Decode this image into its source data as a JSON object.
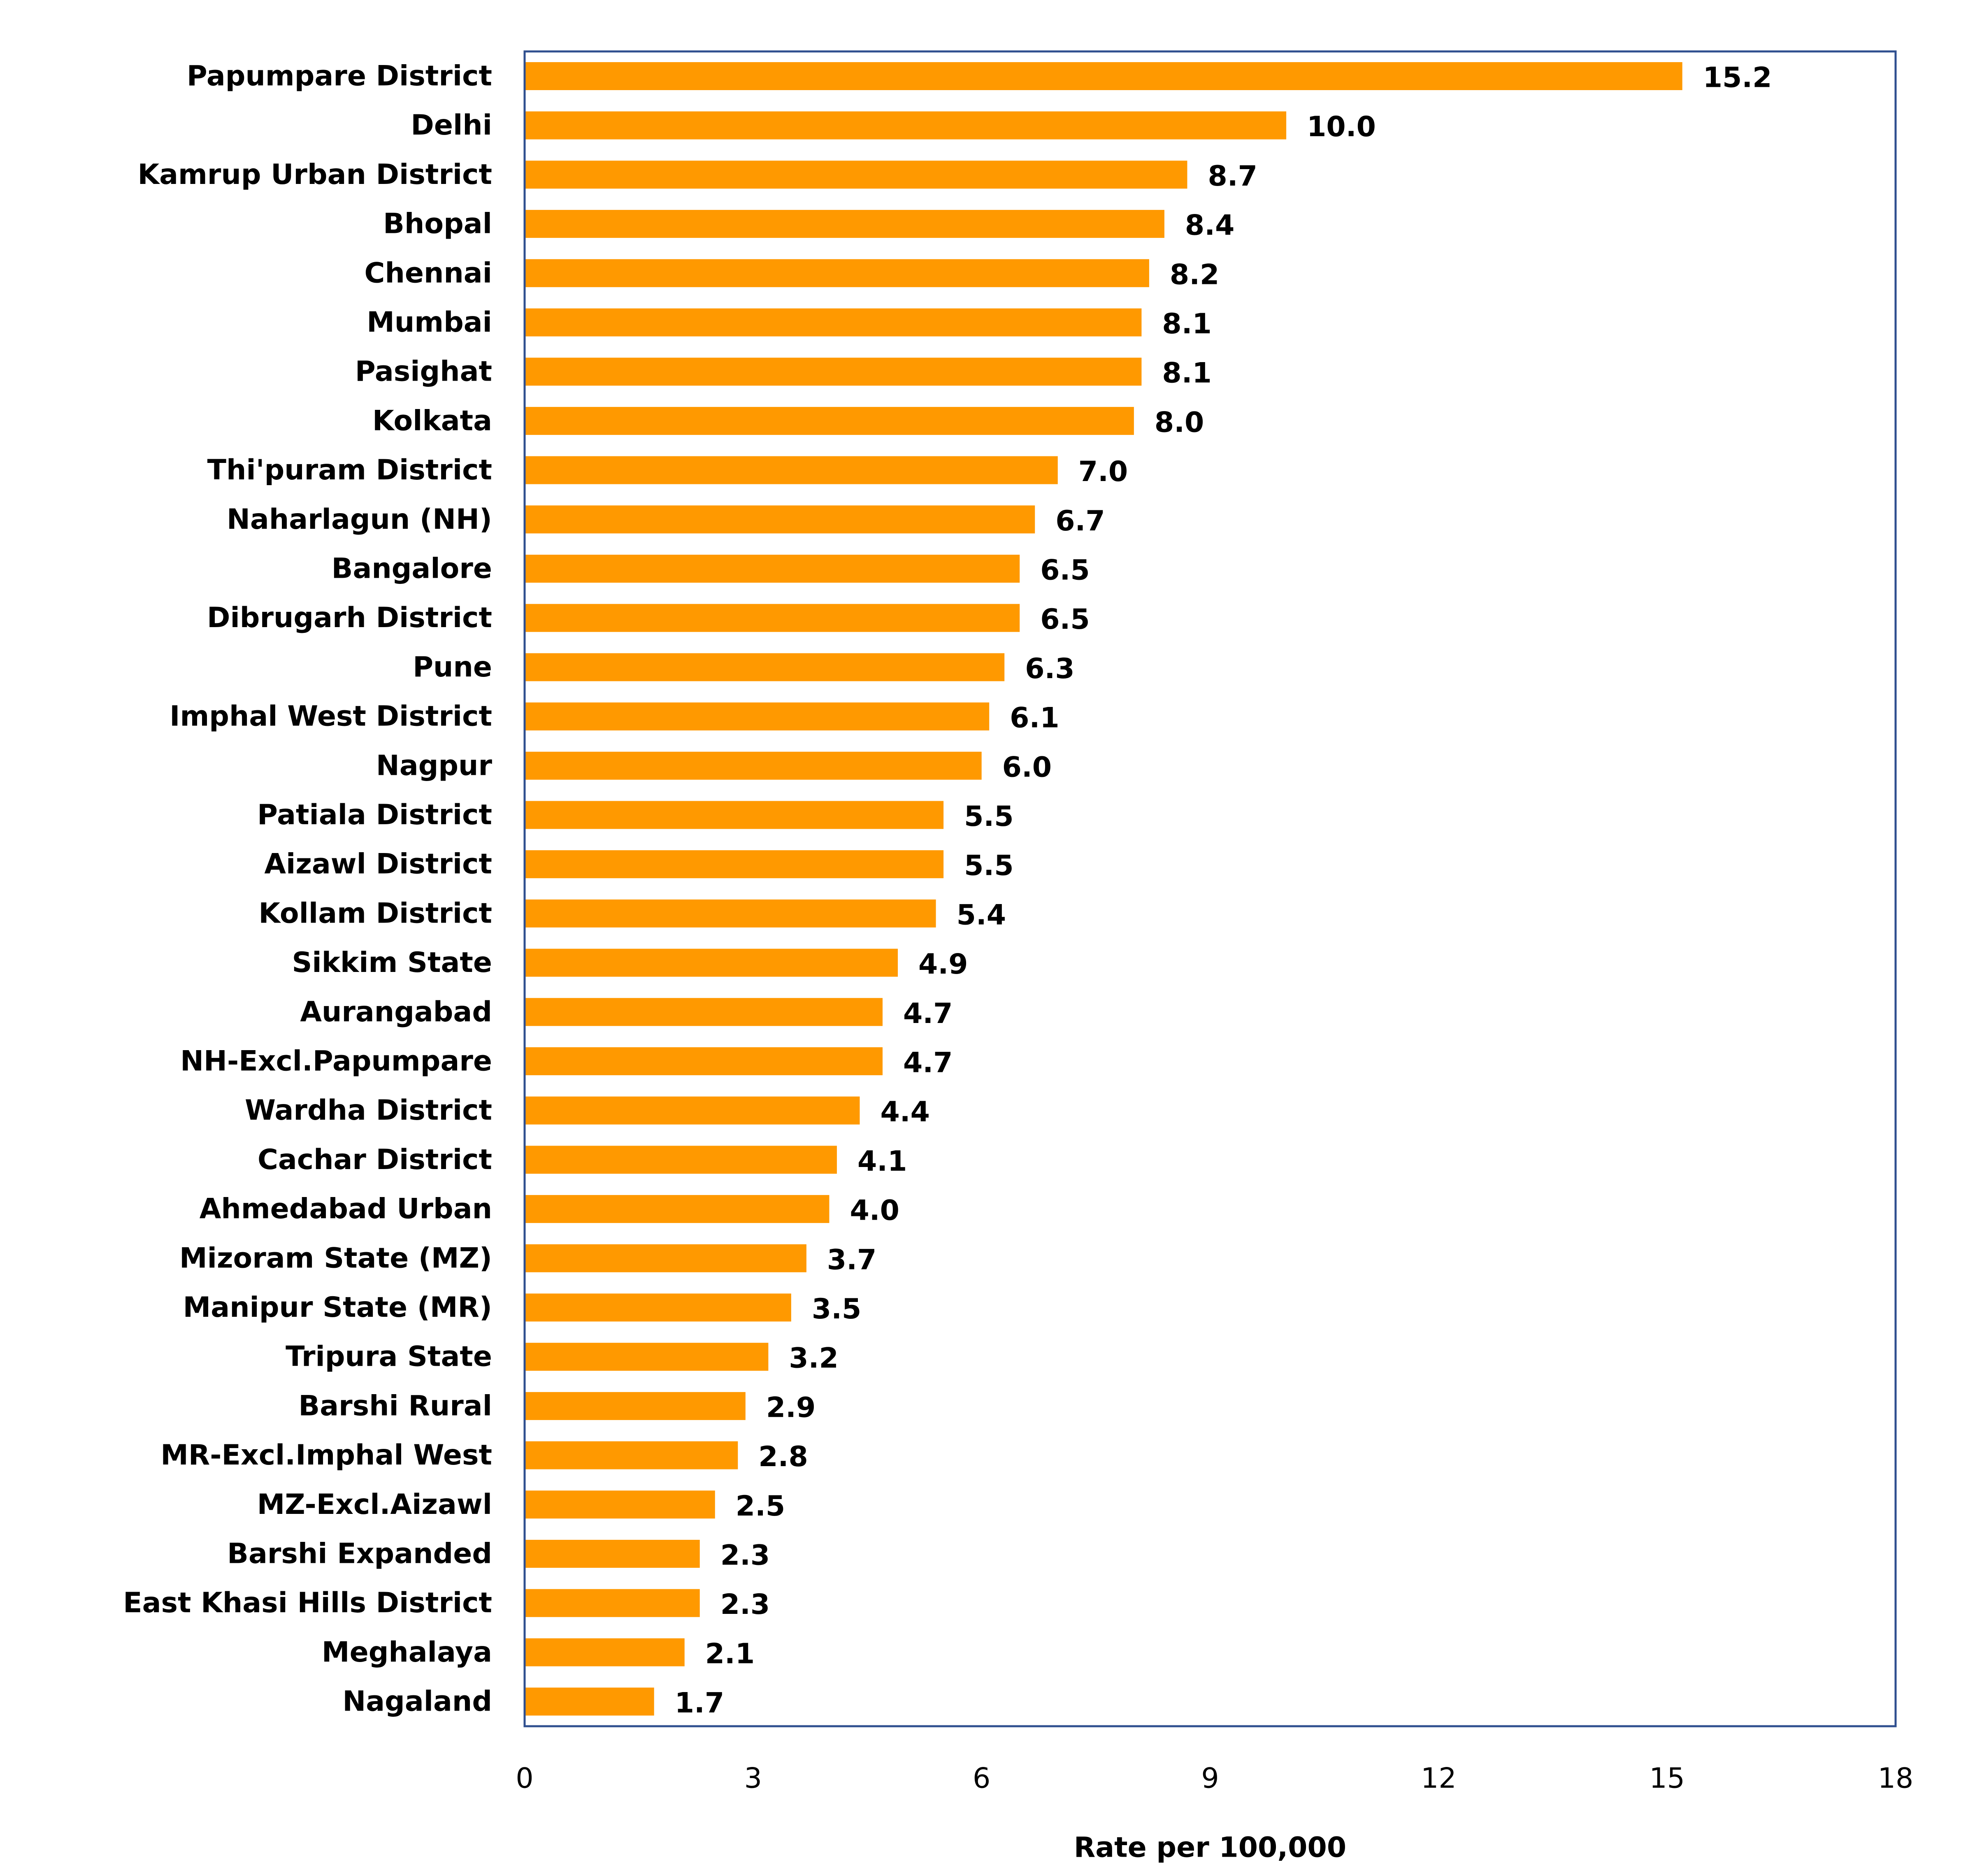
{
  "chart_data": {
    "type": "bar",
    "orientation": "horizontal",
    "categories": [
      "Papumpare District",
      "Delhi",
      "Kamrup Urban District",
      "Bhopal",
      "Chennai",
      "Mumbai",
      "Pasighat",
      "Kolkata",
      "Thi'puram District",
      "Naharlagun (NH)",
      "Bangalore",
      "Dibrugarh District",
      "Pune",
      "Imphal West District",
      "Nagpur",
      "Patiala District",
      "Aizawl District",
      "Kollam District",
      "Sikkim State",
      "Aurangabad",
      "NH-Excl.Papumpare",
      "Wardha District",
      "Cachar District",
      "Ahmedabad Urban",
      "Mizoram State (MZ)",
      "Manipur State (MR)",
      "Tripura State",
      "Barshi Rural",
      "MR-Excl.Imphal West",
      "MZ-Excl.Aizawl",
      "Barshi Expanded",
      "East Khasi Hills District",
      "Meghalaya",
      "Nagaland"
    ],
    "values": [
      15.2,
      10.0,
      8.7,
      8.4,
      8.2,
      8.1,
      8.1,
      8.0,
      7.0,
      6.7,
      6.5,
      6.5,
      6.3,
      6.1,
      6.0,
      5.5,
      5.5,
      5.4,
      4.9,
      4.7,
      4.7,
      4.4,
      4.1,
      4.0,
      3.7,
      3.5,
      3.2,
      2.9,
      2.8,
      2.5,
      2.3,
      2.3,
      2.1,
      1.7
    ],
    "value_labels": [
      "15.2",
      "10.0",
      "8.7",
      "8.4",
      "8.2",
      "8.1",
      "8.1",
      "8.0",
      "7.0",
      "6.7",
      "6.5",
      "6.5",
      "6.3",
      "6.1",
      "6.0",
      "5.5",
      "5.5",
      "5.4",
      "4.9",
      "4.7",
      "4.7",
      "4.4",
      "4.1",
      "4.0",
      "3.7",
      "3.5",
      "3.2",
      "2.9",
      "2.8",
      "2.5",
      "2.3",
      "2.3",
      "2.1",
      "1.7"
    ],
    "xlabel": "Rate per 100,000",
    "ylabel": "",
    "title": "",
    "xlim": [
      0,
      18
    ],
    "xticks": [
      0,
      3,
      6,
      9,
      12,
      15,
      18
    ],
    "xtick_labels": [
      "0",
      "3",
      "6",
      "9",
      "12",
      "15",
      "18"
    ],
    "grid": false,
    "legend": "none",
    "colors": {
      "bar": "#FF9900",
      "plot_border": "#2F4F8F",
      "text": "#000000"
    }
  }
}
